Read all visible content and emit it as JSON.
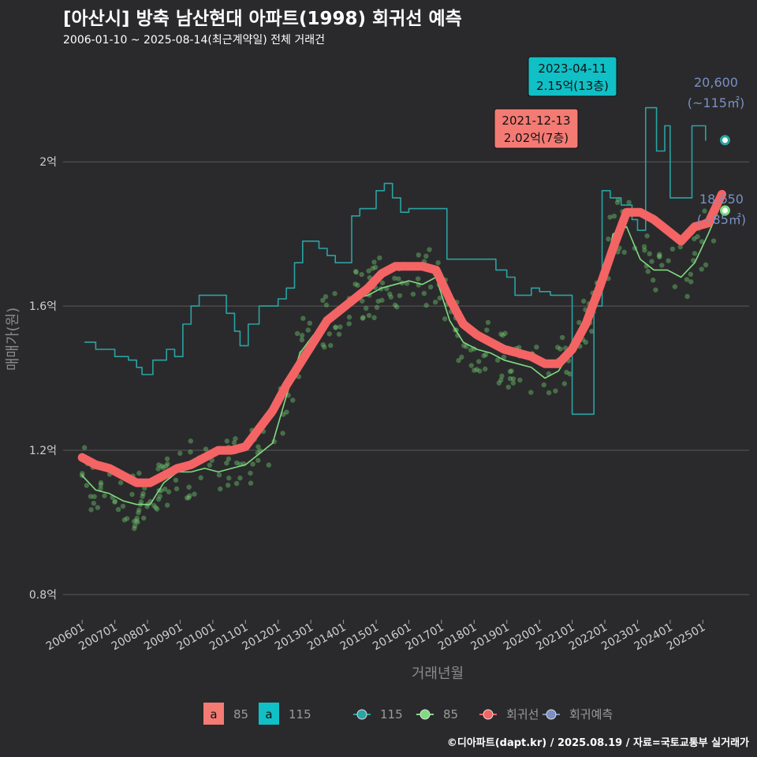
{
  "title": "[아산시] 방축 남산현대 아파트(1998) 회귀선 예측",
  "subtitle": "2006-01-10 ~ 2025-08-14(최근계약일) 전체 거래건",
  "credit": "©디아파트(dapt.kr) / 2025.08.19 / 자료=국토교통부 실거래가",
  "colors": {
    "background": "#2a2a2c",
    "grid": "#5a5a5a",
    "s115": "#2aa3a3",
    "s85": "#7fdc7f",
    "regression": "#f46464",
    "forecast": "#7a90c4",
    "label_red": "#f47a74",
    "label_teal": "#10c0c6"
  },
  "chart_data": {
    "type": "line",
    "xlabel": "거래년월",
    "ylabel": "매매가(원)",
    "xlim": [
      "2005-06",
      "2026-06"
    ],
    "ylim": [
      0.73,
      2.3
    ],
    "x_ticks": [
      "200601",
      "200701",
      "200801",
      "200901",
      "201001",
      "201101",
      "201201",
      "201301",
      "201401",
      "201501",
      "201601",
      "201701",
      "201801",
      "201901",
      "202001",
      "202101",
      "202201",
      "202301",
      "202401",
      "202501"
    ],
    "y_ticks": [
      {
        "value": 0.8,
        "label": "0.8억"
      },
      {
        "value": 1.2,
        "label": "1.2억"
      },
      {
        "value": 1.6,
        "label": "1.6억"
      },
      {
        "value": 2.0,
        "label": "2억"
      }
    ],
    "grid": true,
    "legend": {
      "position": "bottom",
      "area_keys": [
        {
          "key": "a",
          "label": "85",
          "color": "#f47a74"
        },
        {
          "key": "a",
          "label": "115",
          "color": "#10c0c6"
        }
      ],
      "lines": [
        {
          "label": "115",
          "color": "#2aa3a3"
        },
        {
          "label": "85",
          "color": "#7fdc7f"
        },
        {
          "label": "회귀선",
          "color": "#f46464"
        },
        {
          "label": "회귀예측",
          "color": "#7a90c4"
        }
      ]
    },
    "series": [
      {
        "name": "115",
        "values": [
          [
            "2006-02",
            1.5
          ],
          [
            "2006-06",
            1.48
          ],
          [
            "2007-01",
            1.46
          ],
          [
            "2007-06",
            1.45
          ],
          [
            "2007-09",
            1.43
          ],
          [
            "2007-11",
            1.41
          ],
          [
            "2008-03",
            1.45
          ],
          [
            "2008-08",
            1.48
          ],
          [
            "2008-11",
            1.46
          ],
          [
            "2009-02",
            1.55
          ],
          [
            "2009-05",
            1.6
          ],
          [
            "2009-08",
            1.63
          ],
          [
            "2010-06",
            1.58
          ],
          [
            "2010-09",
            1.53
          ],
          [
            "2010-11",
            1.49
          ],
          [
            "2011-02",
            1.55
          ],
          [
            "2011-06",
            1.6
          ],
          [
            "2011-10",
            1.6
          ],
          [
            "2012-01",
            1.62
          ],
          [
            "2012-04",
            1.65
          ],
          [
            "2012-07",
            1.72
          ],
          [
            "2012-10",
            1.78
          ],
          [
            "2013-01",
            1.78
          ],
          [
            "2013-04",
            1.76
          ],
          [
            "2013-07",
            1.74
          ],
          [
            "2013-10",
            1.72
          ],
          [
            "2014-01",
            1.72
          ],
          [
            "2014-04",
            1.85
          ],
          [
            "2014-07",
            1.87
          ],
          [
            "2014-10",
            1.87
          ],
          [
            "2015-01",
            1.92
          ],
          [
            "2015-04",
            1.94
          ],
          [
            "2015-07",
            1.9
          ],
          [
            "2015-10",
            1.86
          ],
          [
            "2016-01",
            1.87
          ],
          [
            "2017-03",
            1.73
          ],
          [
            "2017-09",
            1.73
          ],
          [
            "2018-09",
            1.7
          ],
          [
            "2019-01",
            1.68
          ],
          [
            "2019-04",
            1.63
          ],
          [
            "2019-07",
            1.63
          ],
          [
            "2019-10",
            1.65
          ],
          [
            "2020-01",
            1.64
          ],
          [
            "2020-05",
            1.63
          ],
          [
            "2021-01",
            1.3
          ],
          [
            "2021-05",
            1.3
          ],
          [
            "2021-09",
            1.6
          ],
          [
            "2021-12",
            1.92
          ],
          [
            "2022-03",
            1.9
          ],
          [
            "2022-07",
            1.88
          ],
          [
            "2022-11",
            1.84
          ],
          [
            "2023-01",
            1.81
          ],
          [
            "2023-04",
            2.15
          ],
          [
            "2023-08",
            2.03
          ],
          [
            "2023-11",
            2.1
          ],
          [
            "2024-01",
            1.9
          ],
          [
            "2024-06",
            1.9
          ],
          [
            "2024-09",
            2.1
          ],
          [
            "2025-02",
            2.06
          ]
        ]
      },
      {
        "name": "85",
        "values": [
          [
            "2006-01",
            1.13
          ],
          [
            "2006-06",
            1.09
          ],
          [
            "2006-11",
            1.08
          ],
          [
            "2007-04",
            1.06
          ],
          [
            "2007-09",
            1.05
          ],
          [
            "2008-02",
            1.05
          ],
          [
            "2008-07",
            1.11
          ],
          [
            "2008-12",
            1.14
          ],
          [
            "2009-05",
            1.14
          ],
          [
            "2009-10",
            1.15
          ],
          [
            "2010-03",
            1.14
          ],
          [
            "2010-08",
            1.15
          ],
          [
            "2011-01",
            1.16
          ],
          [
            "2011-06",
            1.19
          ],
          [
            "2011-11",
            1.22
          ],
          [
            "2012-04",
            1.35
          ],
          [
            "2012-09",
            1.47
          ],
          [
            "2013-02",
            1.52
          ],
          [
            "2013-07",
            1.55
          ],
          [
            "2013-12",
            1.58
          ],
          [
            "2014-05",
            1.62
          ],
          [
            "2014-10",
            1.63
          ],
          [
            "2015-03",
            1.65
          ],
          [
            "2015-08",
            1.66
          ],
          [
            "2016-01",
            1.67
          ],
          [
            "2016-06",
            1.66
          ],
          [
            "2016-11",
            1.68
          ],
          [
            "2017-04",
            1.56
          ],
          [
            "2017-09",
            1.5
          ],
          [
            "2018-02",
            1.48
          ],
          [
            "2018-07",
            1.47
          ],
          [
            "2018-12",
            1.45
          ],
          [
            "2019-05",
            1.44
          ],
          [
            "2019-10",
            1.43
          ],
          [
            "2020-03",
            1.4
          ],
          [
            "2020-08",
            1.42
          ],
          [
            "2021-01",
            1.48
          ],
          [
            "2021-06",
            1.55
          ],
          [
            "2021-11",
            1.62
          ],
          [
            "2022-04",
            1.8
          ],
          [
            "2022-09",
            1.82
          ],
          [
            "2023-02",
            1.73
          ],
          [
            "2023-07",
            1.7
          ],
          [
            "2023-12",
            1.7
          ],
          [
            "2024-05",
            1.68
          ],
          [
            "2024-10",
            1.72
          ],
          [
            "2025-03",
            1.8
          ],
          [
            "2025-07",
            1.87
          ]
        ]
      },
      {
        "name": "회귀선",
        "values": [
          [
            "2006-01",
            1.18
          ],
          [
            "2006-06",
            1.16
          ],
          [
            "2006-11",
            1.15
          ],
          [
            "2007-04",
            1.13
          ],
          [
            "2007-09",
            1.11
          ],
          [
            "2008-02",
            1.11
          ],
          [
            "2008-07",
            1.13
          ],
          [
            "2008-12",
            1.15
          ],
          [
            "2009-05",
            1.16
          ],
          [
            "2009-10",
            1.18
          ],
          [
            "2010-03",
            1.2
          ],
          [
            "2010-08",
            1.2
          ],
          [
            "2011-01",
            1.21
          ],
          [
            "2011-06",
            1.26
          ],
          [
            "2011-11",
            1.31
          ],
          [
            "2012-04",
            1.38
          ],
          [
            "2012-09",
            1.44
          ],
          [
            "2013-02",
            1.5
          ],
          [
            "2013-07",
            1.56
          ],
          [
            "2013-12",
            1.59
          ],
          [
            "2014-05",
            1.62
          ],
          [
            "2014-10",
            1.65
          ],
          [
            "2015-03",
            1.69
          ],
          [
            "2015-08",
            1.71
          ],
          [
            "2016-01",
            1.71
          ],
          [
            "2016-06",
            1.71
          ],
          [
            "2016-11",
            1.7
          ],
          [
            "2017-04",
            1.62
          ],
          [
            "2017-09",
            1.55
          ],
          [
            "2018-02",
            1.52
          ],
          [
            "2018-07",
            1.5
          ],
          [
            "2018-12",
            1.48
          ],
          [
            "2019-05",
            1.47
          ],
          [
            "2019-10",
            1.46
          ],
          [
            "2020-03",
            1.44
          ],
          [
            "2020-08",
            1.44
          ],
          [
            "2021-01",
            1.48
          ],
          [
            "2021-06",
            1.55
          ],
          [
            "2021-11",
            1.65
          ],
          [
            "2022-04",
            1.76
          ],
          [
            "2022-09",
            1.86
          ],
          [
            "2023-02",
            1.86
          ],
          [
            "2023-07",
            1.84
          ],
          [
            "2023-12",
            1.81
          ],
          [
            "2024-05",
            1.78
          ],
          [
            "2024-10",
            1.82
          ],
          [
            "2025-03",
            1.83
          ],
          [
            "2025-08",
            1.91
          ]
        ]
      },
      {
        "name": "회귀예측",
        "values": [
          [
            "2025-08",
            2.06
          ],
          [
            "2025-08",
            1.865
          ]
        ]
      }
    ],
    "annotations": [
      {
        "x": "2021-12",
        "y": 2.02,
        "date_text": "2021-12-13",
        "price_text": "2.02억(7층)",
        "style": "red"
      },
      {
        "x": "2023-04",
        "y": 2.15,
        "date_text": "2023-04-11",
        "price_text": "2.15억(13층)",
        "style": "teal"
      },
      {
        "x": "2025-08",
        "y": 2.06,
        "value_text": "20,600",
        "area_text": "(~115㎡)"
      },
      {
        "x": "2025-08",
        "y": 1.865,
        "value_text": "18,650",
        "area_text": "(~85㎡)"
      }
    ]
  }
}
